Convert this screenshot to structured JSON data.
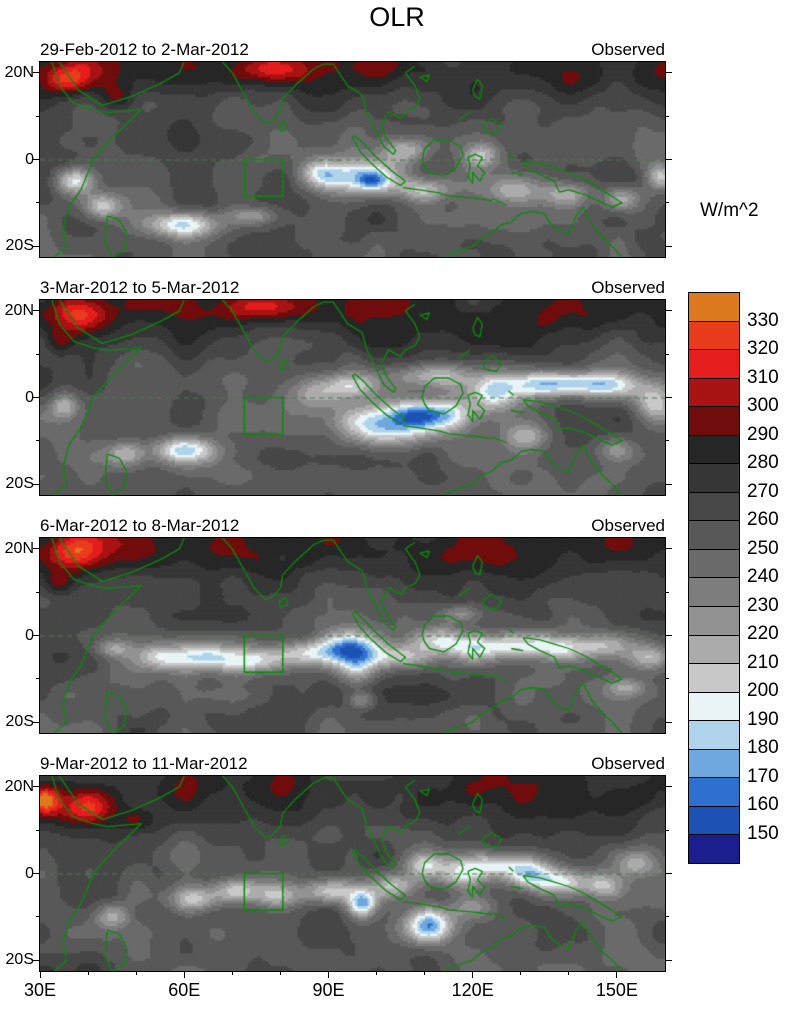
{
  "title": "OLR",
  "chart_data": {
    "type": "heatmap",
    "title": "OLR",
    "units": "W/m^2",
    "x_axis": {
      "ticks": [
        "30E",
        "60E",
        "90E",
        "120E",
        "150E"
      ],
      "lons": [
        30,
        60,
        90,
        120,
        150
      ],
      "minor_step": 10,
      "range": [
        30,
        160
      ]
    },
    "y_axis": {
      "ticks": [
        "20N",
        "0",
        "20S"
      ],
      "lats": [
        20,
        0,
        -20
      ],
      "minor_lats": [
        10,
        -10
      ],
      "range": [
        -22.5,
        22.5
      ]
    },
    "colorbar": {
      "label": "W/m^2",
      "tick_labels": [
        "330",
        "320",
        "310",
        "300",
        "290",
        "280",
        "270",
        "260",
        "250",
        "240",
        "230",
        "220",
        "210",
        "200",
        "190",
        "180",
        "170",
        "160",
        "150"
      ],
      "colors_top_to_bottom": [
        "#dd7a1f",
        "#ea3c1c",
        "#e51d1d",
        "#a81313",
        "#700c0c",
        "#262626",
        "#363636",
        "#474747",
        "#585858",
        "#6a6a6a",
        "#7d7d7d",
        "#929292",
        "#ababab",
        "#c8c8c8",
        "#e8f4f6",
        "#aed3ea",
        "#6fa8df",
        "#2f6fd0",
        "#1d52b4",
        "#1a1e8f"
      ],
      "value_step": 10,
      "value_min": 150,
      "value_max": 330
    },
    "highlight_box": {
      "lon_min": 72.5,
      "lon_max": 80.5,
      "lat_min": -8.5,
      "lat_max": 0
    },
    "feature_format": [
      "lon",
      "lat",
      "radius_lon_deg",
      "radius_lat_deg",
      "delta_wm2"
    ],
    "panels": [
      {
        "label": "29-Feb-2012 to 2-Mar-2012",
        "source": "Observed",
        "features": [
          [
            36,
            19,
            6,
            4,
            42
          ],
          [
            46,
            14,
            4,
            3,
            28
          ],
          [
            78,
            21,
            8,
            3,
            34
          ],
          [
            37,
            -5,
            4,
            3,
            -62
          ],
          [
            43,
            -11,
            4,
            3,
            -52
          ],
          [
            60,
            -15,
            7,
            3,
            -80
          ],
          [
            74,
            -13,
            5,
            2,
            -32
          ],
          [
            88,
            -3,
            4,
            3,
            -38
          ],
          [
            97,
            -4,
            9,
            4,
            -72
          ],
          [
            99,
            -5,
            3,
            2,
            -30
          ],
          [
            110,
            -7,
            6,
            3,
            -52
          ],
          [
            106,
            2,
            5,
            3,
            -42
          ],
          [
            122,
            1,
            4,
            3,
            -38
          ],
          [
            128,
            -7,
            5,
            3,
            -38
          ],
          [
            139,
            -8,
            6,
            3,
            -42
          ],
          [
            151,
            -9,
            4,
            3,
            -42
          ],
          [
            159,
            -4,
            3,
            3,
            -52
          ]
        ]
      },
      {
        "label": "3-Mar-2012 to 5-Mar-2012",
        "source": "Observed",
        "features": [
          [
            38,
            19,
            6,
            4,
            45
          ],
          [
            34,
            13,
            3,
            3,
            26
          ],
          [
            76,
            21,
            8,
            3,
            36
          ],
          [
            35,
            -2,
            3,
            3,
            -38
          ],
          [
            48,
            -13,
            4,
            3,
            -42
          ],
          [
            60,
            -12,
            6,
            3,
            -66
          ],
          [
            88,
            1,
            6,
            4,
            -42
          ],
          [
            95,
            3,
            5,
            3,
            -46
          ],
          [
            101,
            -6,
            10,
            5,
            -88
          ],
          [
            108,
            -4,
            5,
            3,
            -38
          ],
          [
            115,
            -4,
            7,
            4,
            -62
          ],
          [
            112,
            5,
            7,
            3,
            -52
          ],
          [
            124,
            1,
            5,
            4,
            -52
          ],
          [
            131,
            -9,
            5,
            3,
            -38
          ],
          [
            137,
            3,
            10,
            3,
            -76
          ],
          [
            149,
            3,
            7,
            3,
            -52
          ],
          [
            158,
            -1,
            4,
            4,
            -48
          ],
          [
            150,
            -12,
            4,
            3,
            -32
          ]
        ]
      },
      {
        "label": "6-Mar-2012 to 8-Mar-2012",
        "source": "Observed",
        "features": [
          [
            37,
            19,
            6,
            4,
            40
          ],
          [
            34,
            12,
            3,
            3,
            26
          ],
          [
            45,
            -3,
            4,
            2,
            -32
          ],
          [
            55,
            -5,
            7,
            3,
            -42
          ],
          [
            65,
            -5,
            7,
            3,
            -52
          ],
          [
            75,
            -6,
            7,
            3,
            -48
          ],
          [
            85,
            -4,
            7,
            3,
            -52
          ],
          [
            95,
            -3,
            6,
            4,
            -86
          ],
          [
            96,
            -8,
            4,
            4,
            -42
          ],
          [
            104,
            -5,
            7,
            3,
            -52
          ],
          [
            112,
            -1,
            6,
            3,
            -48
          ],
          [
            120,
            -3,
            7,
            3,
            -42
          ],
          [
            129,
            -2,
            7,
            3,
            -48
          ],
          [
            138,
            -3,
            7,
            3,
            -52
          ],
          [
            148,
            -2,
            6,
            3,
            -42
          ],
          [
            157,
            -5,
            5,
            3,
            -48
          ],
          [
            97,
            -15,
            3,
            2,
            -38
          ],
          [
            118,
            5,
            4,
            2,
            -32
          ],
          [
            152,
            -12,
            4,
            2,
            -28
          ]
        ]
      },
      {
        "label": "9-Mar-2012 to 11-Mar-2012",
        "source": "Observed",
        "features": [
          [
            31,
            17,
            3,
            3,
            62
          ],
          [
            40,
            15,
            6,
            4,
            40
          ],
          [
            50,
            12,
            4,
            3,
            28
          ],
          [
            45,
            -10,
            4,
            3,
            -32
          ],
          [
            62,
            -6,
            5,
            3,
            -48
          ],
          [
            71,
            -4,
            5,
            3,
            -56
          ],
          [
            79,
            -5,
            5,
            3,
            -48
          ],
          [
            91,
            -4,
            6,
            3,
            -58
          ],
          [
            97,
            -7,
            3,
            3,
            -76
          ],
          [
            104,
            -3,
            5,
            3,
            -52
          ],
          [
            111,
            -12,
            5,
            4,
            -86
          ],
          [
            110,
            2,
            4,
            3,
            -48
          ],
          [
            118,
            0,
            5,
            4,
            -62
          ],
          [
            125,
            2,
            5,
            3,
            -52
          ],
          [
            132,
            0,
            5,
            4,
            -76
          ],
          [
            139,
            -2,
            5,
            3,
            -52
          ],
          [
            147,
            -3,
            4,
            3,
            -42
          ],
          [
            120,
            -8,
            5,
            3,
            -42
          ],
          [
            154,
            2,
            4,
            3,
            -38
          ]
        ]
      }
    ]
  }
}
